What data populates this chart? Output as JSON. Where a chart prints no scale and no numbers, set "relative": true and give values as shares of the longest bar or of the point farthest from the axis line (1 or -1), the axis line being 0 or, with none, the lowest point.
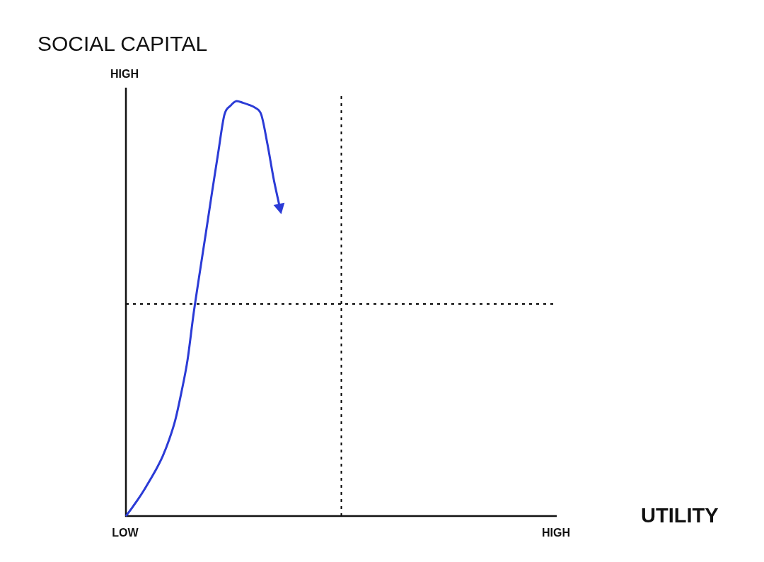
{
  "chart_data": {
    "type": "line",
    "xlabel": "UTILITY",
    "ylabel": "SOCIAL CAPITAL",
    "annotations": [
      "HIGH"
    ],
    "relative": true,
    "marker": "none",
    "categories": [
      "LOW",
      null,
      null,
      null,
      null,
      null,
      null,
      null,
      null,
      null,
      null,
      null,
      null,
      null,
      null,
      null,
      null,
      null,
      null,
      null,
      null,
      null,
      null,
      null,
      null,
      null,
      null,
      null,
      null,
      null,
      null,
      null,
      null,
      null,
      null,
      null,
      null,
      null,
      null,
      null,
      null,
      null,
      null,
      null,
      null,
      null,
      null,
      null,
      null,
      null,
      null,
      null,
      null,
      null,
      null,
      null,
      null,
      null,
      null,
      null,
      null,
      null,
      null,
      null,
      null,
      null,
      null,
      null,
      null,
      null,
      "HIGH"
    ],
    "series": [
      {
        "color": "#2b3bd6",
        "values": [
          0,
          0.02,
          0.041,
          0.064,
          0.089,
          0.115,
          0.145,
          0.183,
          0.23,
          0.297,
          0.375,
          0.488,
          0.587,
          0.683,
          0.781,
          0.876,
          0.967,
          0.989,
          1,
          0.996,
          0.991,
          0.984,
          0.967,
          0.896,
          0.813,
          0.744,
          null,
          null,
          null,
          null,
          null,
          null,
          null,
          null,
          null,
          null,
          null,
          null,
          null,
          null,
          null,
          null,
          null,
          null,
          null,
          null,
          null,
          null,
          null,
          null,
          null,
          null,
          null,
          null,
          null,
          null,
          null,
          null,
          null,
          null,
          null,
          null,
          null,
          null,
          null,
          null,
          null,
          null,
          null,
          null,
          null
        ]
      }
    ],
    "ref_lines": [
      {
        "axis": "y",
        "value": 0.511,
        "line_style": "dashed",
        "color": "#000000"
      }
    ]
  }
}
